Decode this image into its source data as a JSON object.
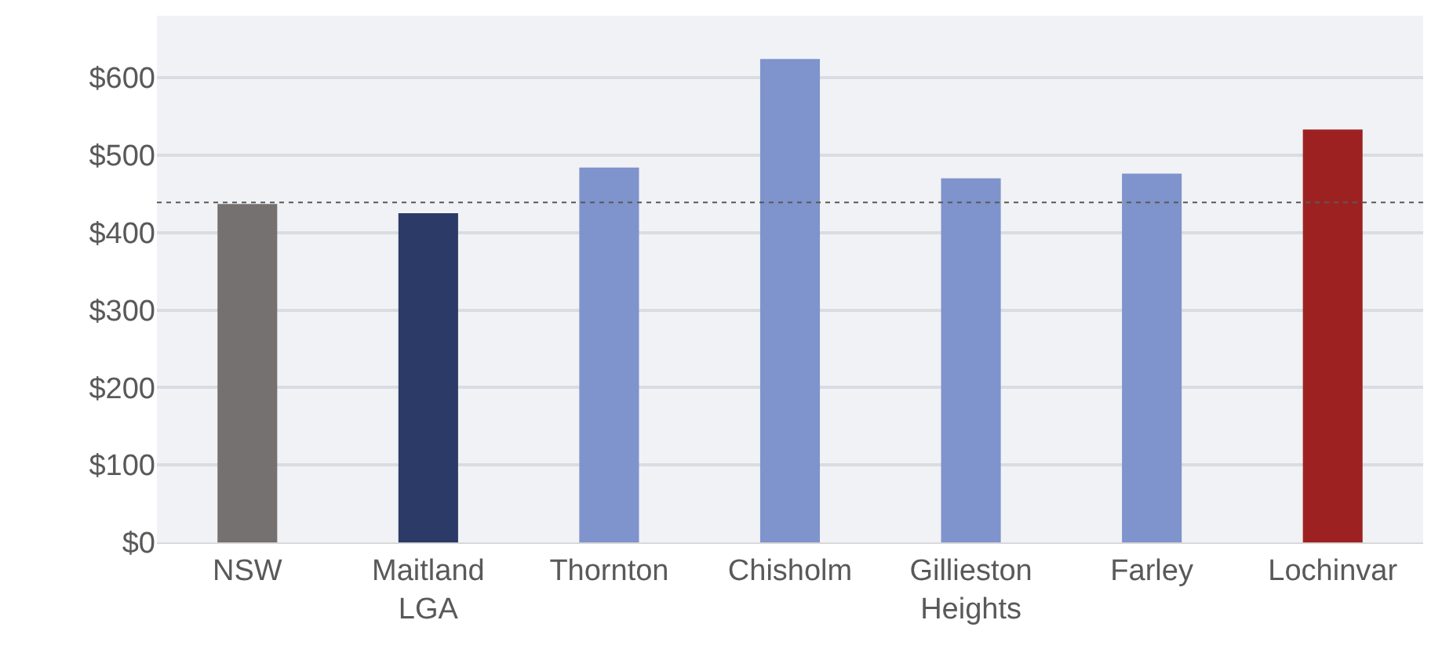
{
  "chart_data": {
    "type": "bar",
    "categories": [
      "NSW",
      "Maitland\nLGA",
      "Thornton",
      "Chisholm",
      "Gillieston\nHeights",
      "Farley",
      "Lochinvar"
    ],
    "values": [
      437,
      425,
      484,
      624,
      470,
      476,
      533
    ],
    "colors": [
      "#767171",
      "#2b3a67",
      "#7f93cc",
      "#7f93cc",
      "#7f93cc",
      "#7f93cc",
      "#9e2121"
    ],
    "ylim": [
      0,
      680
    ],
    "yticks": [
      {
        "value": 0,
        "label": "$0"
      },
      {
        "value": 100,
        "label": "$100"
      },
      {
        "value": 200,
        "label": "$200"
      },
      {
        "value": 300,
        "label": "$300"
      },
      {
        "value": 400,
        "label": "$400"
      },
      {
        "value": 500,
        "label": "$500"
      },
      {
        "value": 600,
        "label": "$600"
      }
    ],
    "grid": "y",
    "ref_lines": [
      {
        "axis": "y",
        "value": 439,
        "color": "#595959",
        "line_style": "dotted"
      }
    ]
  }
}
